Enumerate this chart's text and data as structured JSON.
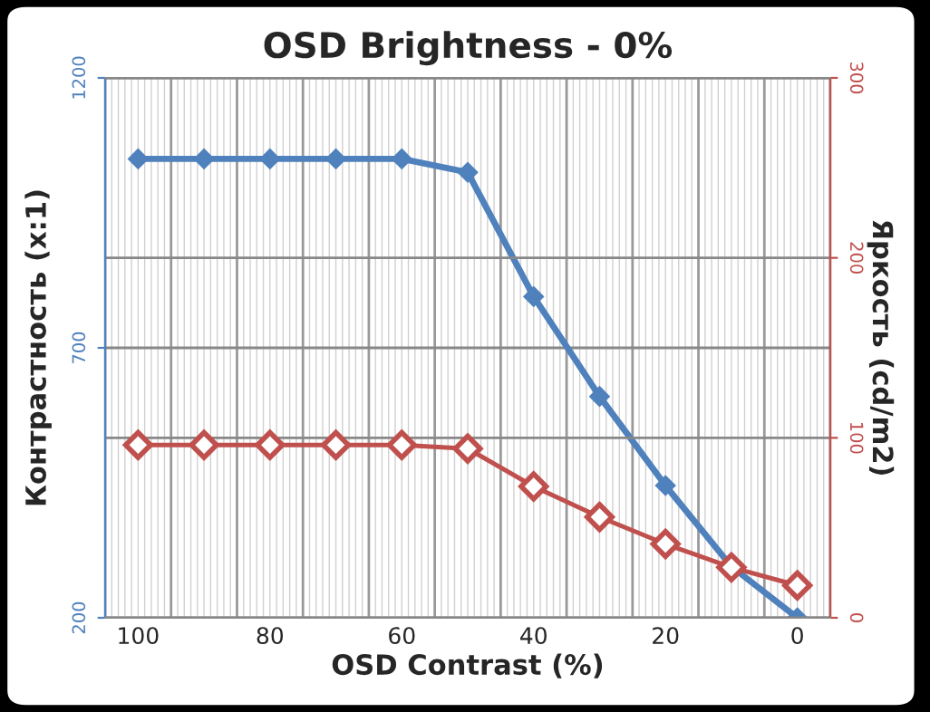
{
  "chart_data": {
    "type": "line",
    "title": "OSD Brightness - 0%",
    "xlabel": "OSD Contrast (%)",
    "ylabel": "Контрастность (x:1)",
    "y2label": "Яркость (cd/m2)",
    "categories": [
      "100",
      null,
      "80",
      null,
      "60",
      null,
      "40",
      null,
      "20",
      null,
      "0"
    ],
    "series": [
      {
        "color": "#4f81bd",
        "marker": "diamond",
        "values": [
          1050,
          1050,
          1050,
          1050,
          1050,
          1025,
          795,
          610,
          445,
          295,
          200
        ]
      },
      {
        "color": "#c0504d",
        "marker": "diamond",
        "axis": "y2",
        "values": [
          96,
          96,
          96,
          96,
          96,
          94,
          73,
          56,
          41,
          28,
          18
        ]
      }
    ],
    "ylim": [
      200,
      1200
    ],
    "yticks": [
      200,
      700,
      1200
    ],
    "y2lim": [
      0,
      300
    ],
    "y2ticks": [
      0,
      100,
      200,
      300
    ],
    "grid": true,
    "legend": false
  }
}
